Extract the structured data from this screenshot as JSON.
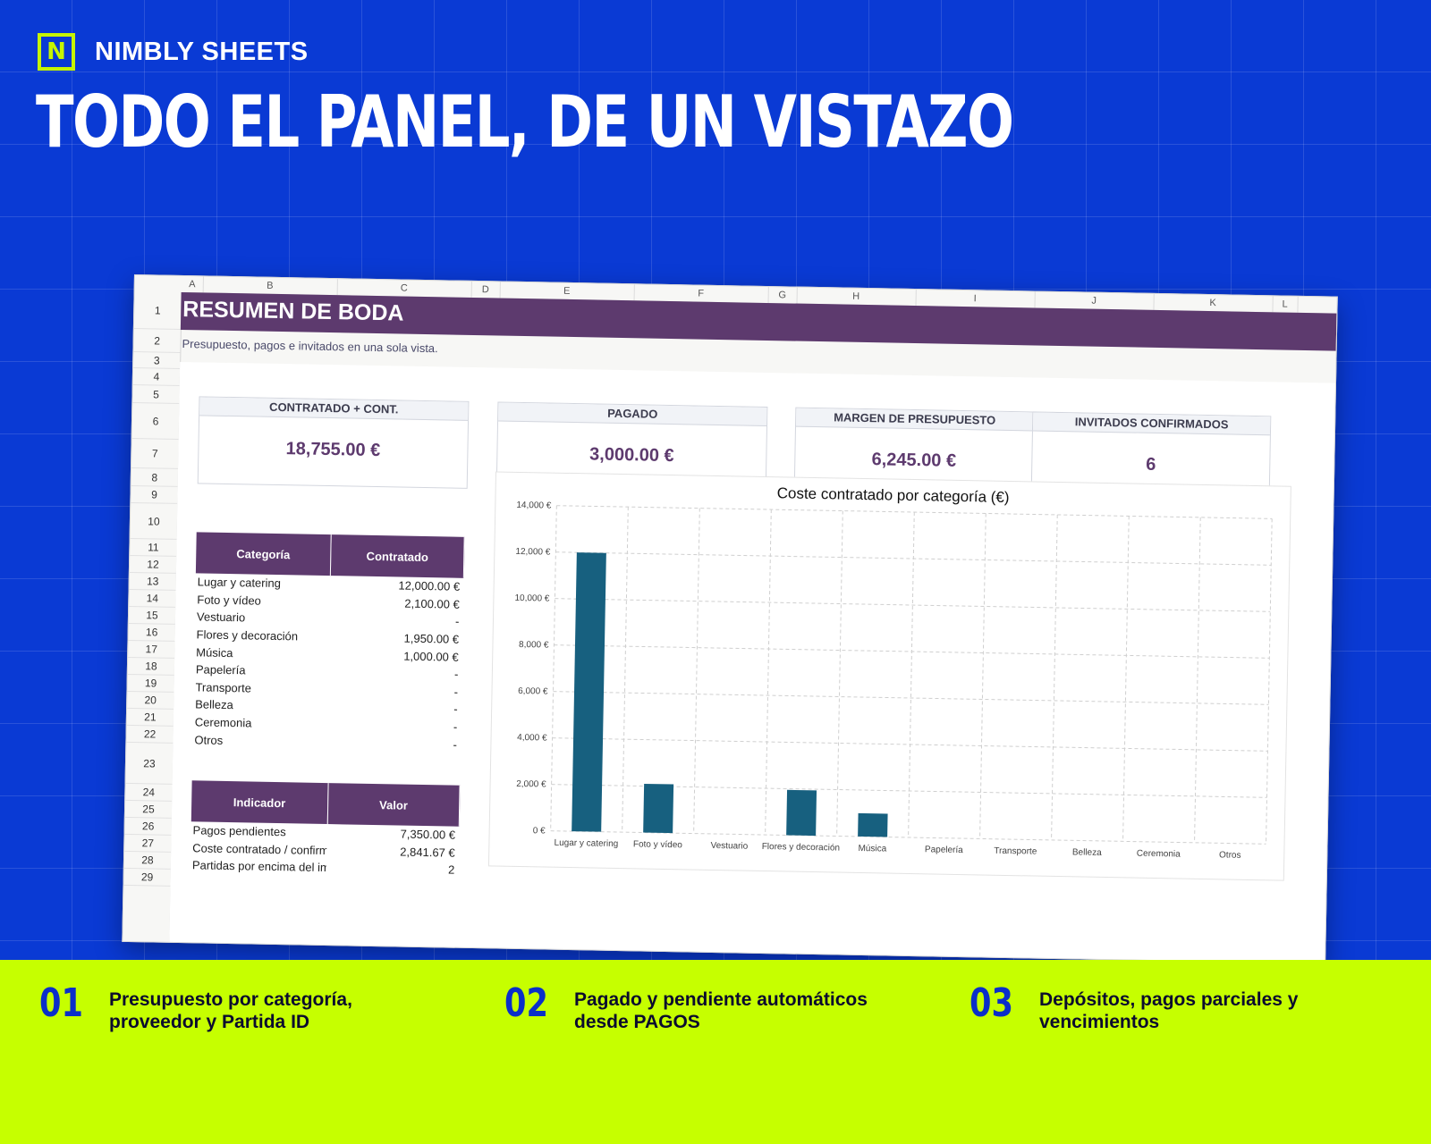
{
  "brand": {
    "logo_letter": "N",
    "name": "NIMBLY SHEETS"
  },
  "headline": "TODO EL PANEL, DE UN VISTAZO",
  "sheet": {
    "columns": [
      "A",
      "B",
      "C",
      "D",
      "E",
      "F",
      "G",
      "H",
      "I",
      "J",
      "K",
      "L"
    ],
    "rows": [
      "1",
      "2",
      "3",
      "4",
      "5",
      "6",
      "7",
      "8",
      "9",
      "10",
      "11",
      "12",
      "13",
      "14",
      "15",
      "16",
      "17",
      "18",
      "19",
      "20",
      "21",
      "22",
      "23",
      "24",
      "25",
      "26",
      "27",
      "28",
      "29"
    ],
    "title": "RESUMEN DE BODA",
    "subtitle": "Presupuesto, pagos e invitados en una sola vista.",
    "kpis": [
      {
        "label": "CONTRATADO + CONT.",
        "value": "18,755.00 €"
      },
      {
        "label": "PAGADO",
        "value": "3,000.00 €"
      },
      {
        "label": "MARGEN DE PRESUPUESTO",
        "value": "6,245.00 €"
      },
      {
        "label": "INVITADOS CONFIRMADOS",
        "value": "6"
      }
    ],
    "category_table": {
      "headers": [
        "Categoría",
        "Contratado"
      ],
      "rows": [
        {
          "label": "Lugar y catering",
          "value": "12,000.00 €"
        },
        {
          "label": "Foto y vídeo",
          "value": "2,100.00 €"
        },
        {
          "label": "Vestuario",
          "value": "-"
        },
        {
          "label": "Flores y decoración",
          "value": "1,950.00 €"
        },
        {
          "label": "Música",
          "value": "1,000.00 €"
        },
        {
          "label": "Papelería",
          "value": "-"
        },
        {
          "label": "Transporte",
          "value": "-"
        },
        {
          "label": "Belleza",
          "value": "-"
        },
        {
          "label": "Ceremonia",
          "value": "-"
        },
        {
          "label": "Otros",
          "value": "-"
        }
      ]
    },
    "indicator_table": {
      "headers": [
        "Indicador",
        "Valor"
      ],
      "rows": [
        {
          "label": "Pagos pendientes",
          "value": "7,350.00 €"
        },
        {
          "label": "Coste contratado / confirmado",
          "value": "2,841.67 €"
        },
        {
          "label": "Partidas por encima del importe",
          "value": "2"
        }
      ]
    }
  },
  "chart_data": {
    "type": "bar",
    "title": "Coste contratado por categoría (€)",
    "categories": [
      "Lugar y catering",
      "Foto y vídeo",
      "Vestuario",
      "Flores y decoración",
      "Música",
      "Papelería",
      "Transporte",
      "Belleza",
      "Ceremonia",
      "Otros"
    ],
    "values": [
      12000,
      2100,
      0,
      1950,
      1000,
      0,
      0,
      0,
      0,
      0
    ],
    "ylim": [
      0,
      14000
    ],
    "yticks": [
      0,
      2000,
      4000,
      6000,
      8000,
      10000,
      12000,
      14000
    ],
    "ytick_labels": [
      "0 €",
      "2,000 €",
      "4,000 €",
      "6,000 €",
      "8,000 €",
      "10,000 €",
      "12,000 €",
      "14,000 €"
    ],
    "grid": true,
    "bar_color": "#17607f"
  },
  "features": [
    {
      "num": "01",
      "text": "Presupuesto por categoría, proveedor y Partida ID"
    },
    {
      "num": "02",
      "text": "Pagado y pendiente automáticos desde PAGOS"
    },
    {
      "num": "03",
      "text": "Depósitos, pagos parciales y vencimientos"
    }
  ],
  "colors": {
    "background": "#0a3ad4",
    "accent": "#c6ff00",
    "header_purple": "#5d3a6e",
    "number_blue": "#0a2fc9"
  }
}
